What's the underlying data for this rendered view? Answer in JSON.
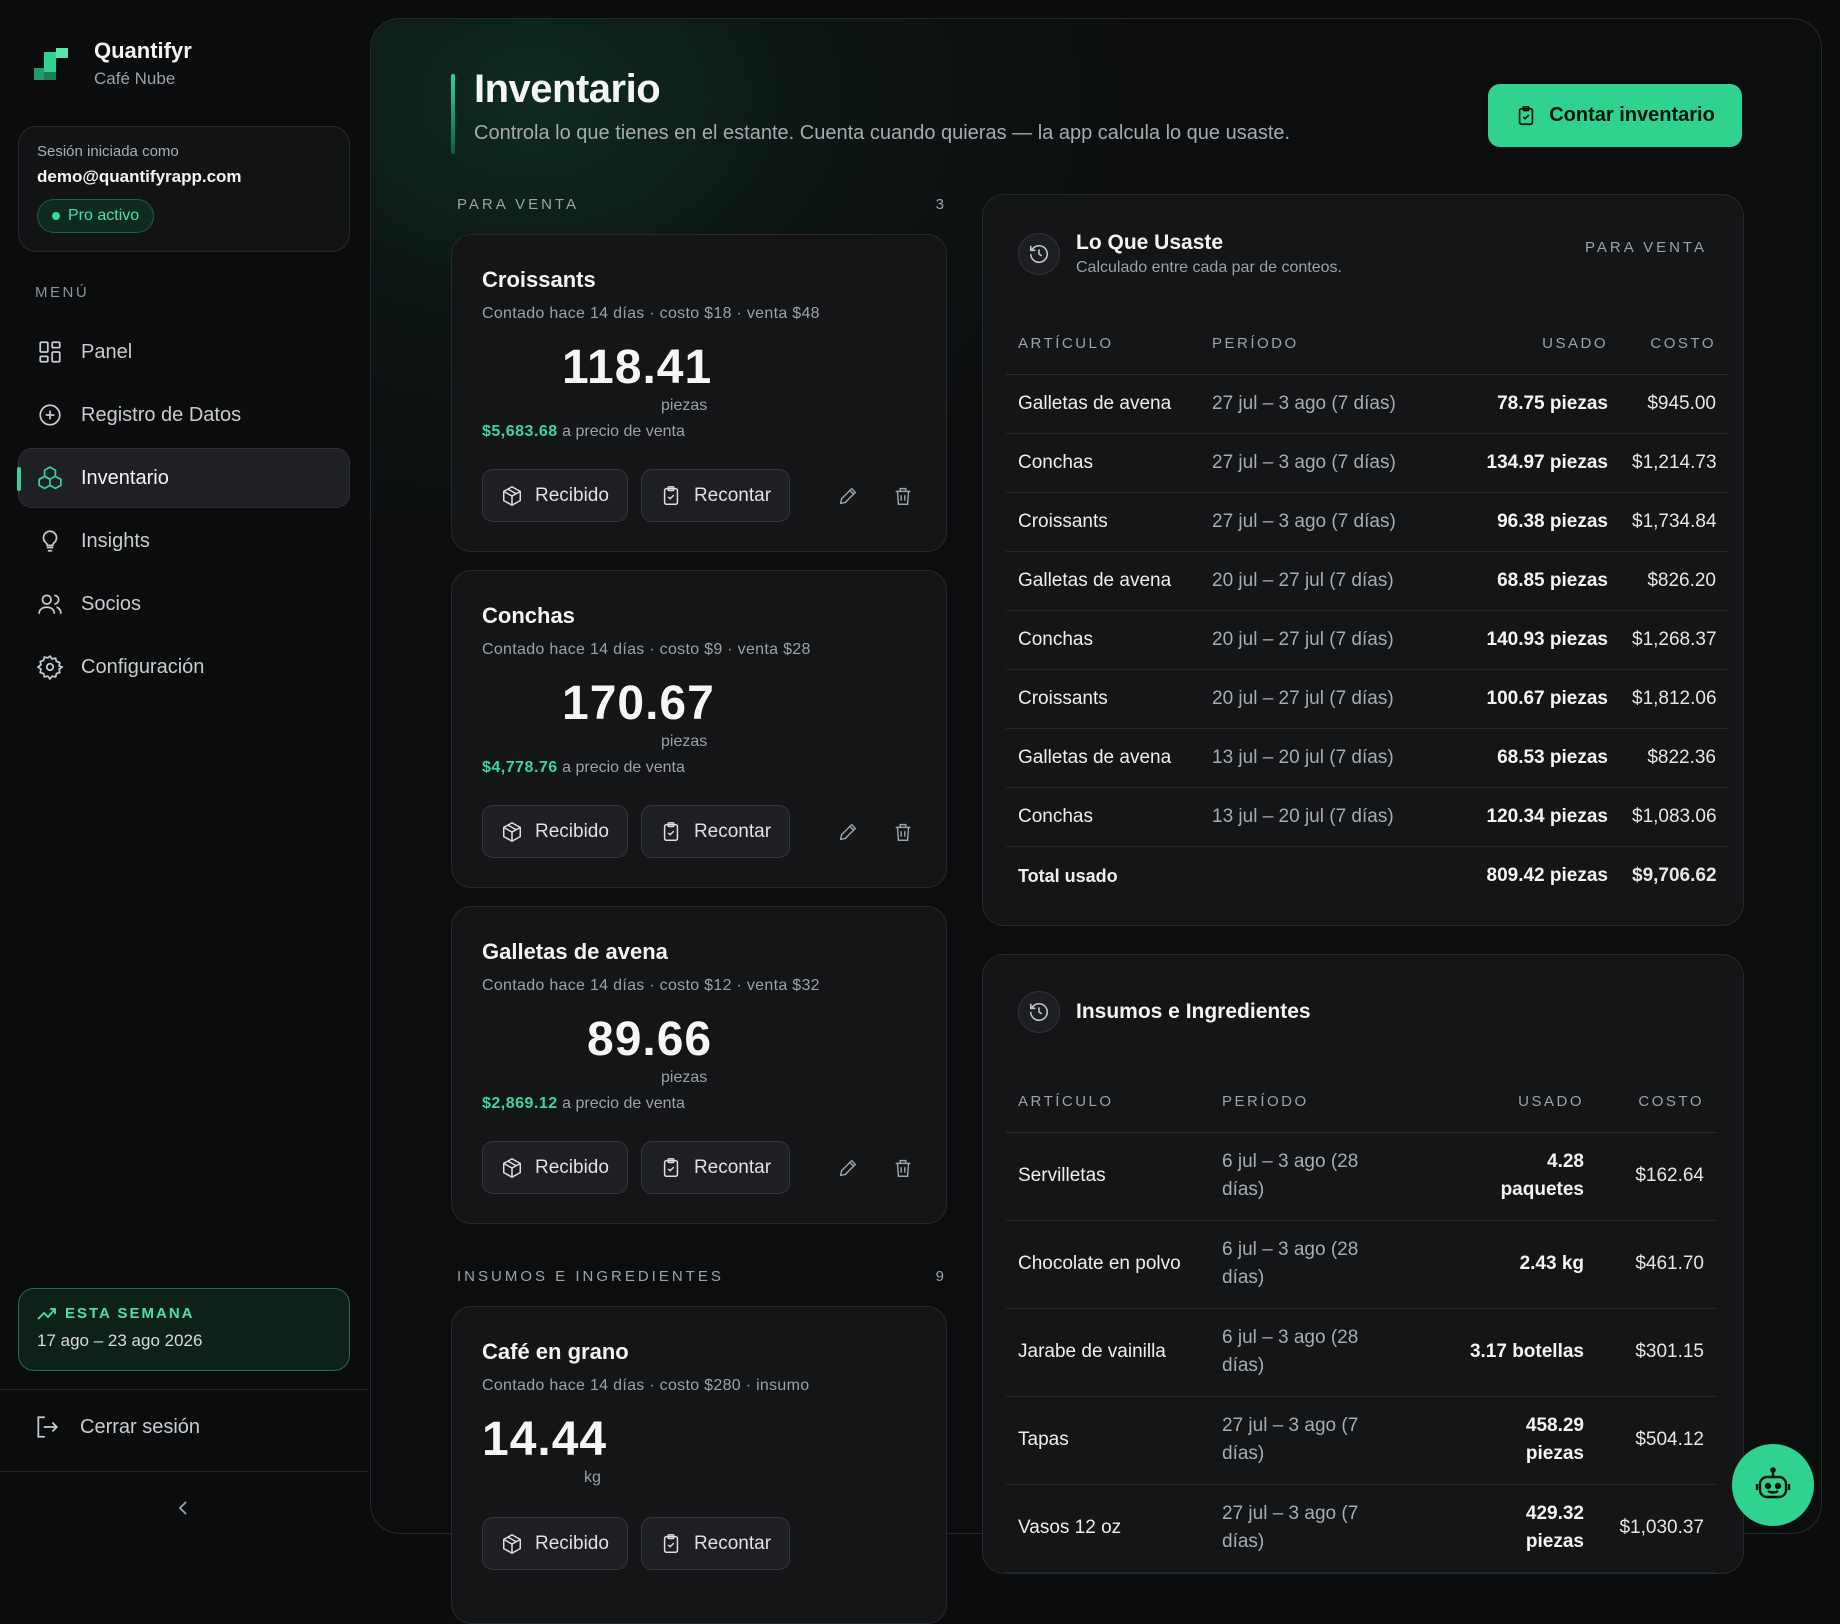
{
  "brand": {
    "name": "Quantifyr",
    "sub": "Café Nube"
  },
  "session": {
    "label": "Sesión iniciada como",
    "email": "demo@quantifyrapp.com",
    "badge": "Pro activo"
  },
  "menu": {
    "label": "MENÚ",
    "items": [
      {
        "label": "Panel",
        "icon": "grid-icon"
      },
      {
        "label": "Registro de Datos",
        "icon": "plus-circle-icon"
      },
      {
        "label": "Inventario",
        "icon": "boxes-icon",
        "active": true
      },
      {
        "label": "Insights",
        "icon": "lightbulb-icon"
      },
      {
        "label": "Socios",
        "icon": "users-icon"
      },
      {
        "label": "Configuración",
        "icon": "gear-icon"
      }
    ]
  },
  "week": {
    "label": "ESTA SEMANA",
    "range": "17 ago – 23 ago 2026"
  },
  "logout": "Cerrar sesión",
  "collapse_icon": "chevron-left-icon",
  "page": {
    "title": "Inventario",
    "subtitle": "Controla lo que tienes en el estante. Cuenta cuando quieras — la app calcula lo que usaste.",
    "cta": "Contar inventario"
  },
  "sale_section": {
    "label": "PARA VENTA",
    "count": "3"
  },
  "supplies_section": {
    "label": "INSUMOS E INGREDIENTES",
    "count": "9"
  },
  "buttons": {
    "received": "Recibido",
    "recount": "Recontar"
  },
  "cards": [
    {
      "name": "Croissants",
      "meta": "Contado hace 14 días · costo $18 · venta $48",
      "qty": "118.41",
      "unit": "piezas",
      "value": "$5,683.68",
      "value_suffix": "a precio de venta"
    },
    {
      "name": "Conchas",
      "meta": "Contado hace 14 días · costo $9 · venta $28",
      "qty": "170.67",
      "unit": "piezas",
      "value": "$4,778.76",
      "value_suffix": "a precio de venta"
    },
    {
      "name": "Galletas de avena",
      "meta": "Contado hace 14 días · costo $12 · venta $32",
      "qty": "89.66",
      "unit": "piezas",
      "value": "$2,869.12",
      "value_suffix": "a precio de venta"
    },
    {
      "name": "Café en grano",
      "meta": "Contado hace 14 días · costo $280 · insumo",
      "qty": "14.44",
      "unit": "kg"
    }
  ],
  "usage": {
    "title": "Lo Que Usaste",
    "subtitle": "Calculado entre cada par de conteos.",
    "tag": "PARA VENTA",
    "headers": [
      "ARTÍCULO",
      "PERÍODO",
      "USADO",
      "COSTO"
    ],
    "rows": [
      {
        "item": "Galletas de avena",
        "period": "27 jul – 3 ago",
        "days": "(7 días)",
        "used": "78.75 piezas",
        "cost": "$945.00"
      },
      {
        "item": "Conchas",
        "period": "27 jul – 3 ago",
        "days": "(7 días)",
        "used": "134.97 piezas",
        "cost": "$1,214.73"
      },
      {
        "item": "Croissants",
        "period": "27 jul – 3 ago",
        "days": "(7 días)",
        "used": "96.38 piezas",
        "cost": "$1,734.84"
      },
      {
        "item": "Galletas de avena",
        "period": "20 jul – 27 jul",
        "days": "(7 días)",
        "used": "68.85 piezas",
        "cost": "$826.20"
      },
      {
        "item": "Conchas",
        "period": "20 jul – 27 jul",
        "days": "(7 días)",
        "used": "140.93 piezas",
        "cost": "$1,268.37"
      },
      {
        "item": "Croissants",
        "period": "20 jul – 27 jul",
        "days": "(7 días)",
        "used": "100.67 piezas",
        "cost": "$1,812.06"
      },
      {
        "item": "Galletas de avena",
        "period": "13 jul – 20 jul",
        "days": "(7 días)",
        "used": "68.53 piezas",
        "cost": "$822.36"
      },
      {
        "item": "Conchas",
        "period": "13 jul – 20 jul",
        "days": "(7 días)",
        "used": "120.34 piezas",
        "cost": "$1,083.06"
      }
    ],
    "total": {
      "label": "Total usado",
      "used": "809.42 piezas",
      "cost": "$9,706.62"
    }
  },
  "supplies": {
    "title": "Insumos e Ingredientes",
    "headers": [
      "ARTÍCULO",
      "PERÍODO",
      "USADO",
      "COSTO"
    ],
    "rows": [
      {
        "item": "Servilletas",
        "period": "6 jul – 3 ago",
        "days": "(28 días)",
        "used": "4.28 paquetes",
        "cost": "$162.64"
      },
      {
        "item": "Chocolate en polvo",
        "period": "6 jul – 3 ago",
        "days": "(28 días)",
        "used": "2.43 kg",
        "cost": "$461.70"
      },
      {
        "item": "Jarabe de vainilla",
        "period": "6 jul – 3 ago",
        "days": "(28 días)",
        "used": "3.17 botellas",
        "cost": "$301.15"
      },
      {
        "item": "Tapas",
        "period": "27 jul – 3 ago",
        "days": "(7 días)",
        "used": "458.29 piezas",
        "cost": "$504.12"
      },
      {
        "item": "Vasos 12 oz",
        "period": "27 jul – 3 ago",
        "days": "(7 días)",
        "used": "429.32 piezas",
        "cost": "$1,030.37"
      }
    ]
  },
  "colors": {
    "accent": "#2fd38f",
    "accent_text": "#3ed69a",
    "background": "#0b0c0d",
    "panel": "#131517"
  }
}
